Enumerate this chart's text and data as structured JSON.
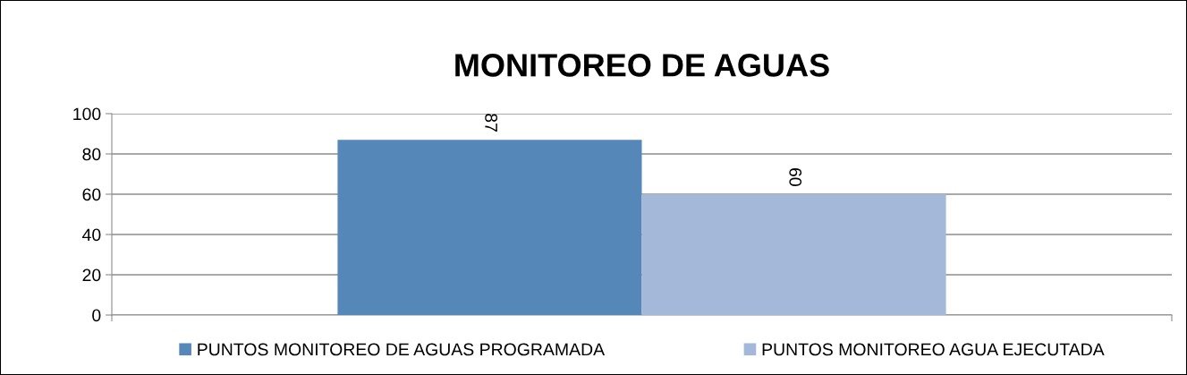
{
  "chart_data": {
    "type": "bar",
    "title": "MONITOREO DE AGUAS",
    "categories": [
      null
    ],
    "series": [
      {
        "name": "PUNTOS MONITOREO DE AGUAS PROGRAMADA",
        "color": "#5687b9",
        "values": [
          87
        ]
      },
      {
        "name": "PUNTOS MONITOREO AGUA EJECUTADA",
        "color": "#a4b8d9",
        "values": [
          60
        ]
      }
    ],
    "ylim": [
      0,
      100
    ],
    "yticks": [
      0,
      20,
      40,
      60,
      80,
      100
    ],
    "grid": "y",
    "legend": "bottom",
    "data_labels": true
  }
}
